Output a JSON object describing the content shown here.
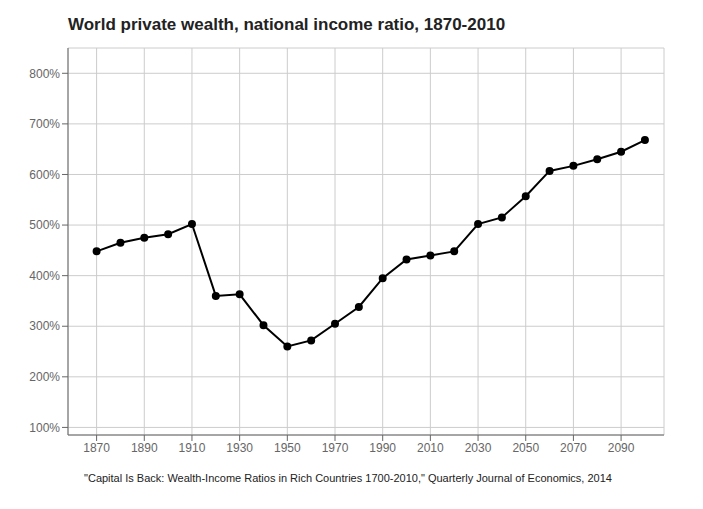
{
  "chart_data": {
    "type": "line",
    "title": "World private wealth, national income ratio, 1870-2010",
    "annotations": [
      "\"Capital Is Back: Wealth-Income Ratios in Rich Countries 1700-2010,\" Quarterly Journal of Economics, 2014"
    ],
    "x": [
      1870,
      1880,
      1890,
      1900,
      1910,
      1920,
      1930,
      1940,
      1950,
      1960,
      1970,
      1980,
      1990,
      2000,
      2010,
      2020,
      2030,
      2040,
      2050,
      2060,
      2070,
      2080,
      2090,
      2100
    ],
    "values": [
      4.48,
      4.65,
      4.75,
      4.82,
      5.02,
      3.6,
      3.63,
      3.02,
      2.6,
      2.72,
      3.05,
      3.38,
      3.95,
      4.32,
      4.4,
      4.48,
      5.02,
      5.15,
      5.57,
      6.07,
      6.17,
      6.3,
      6.45,
      6.68
    ],
    "xlim": [
      1858,
      2108
    ],
    "xticks": [
      1870,
      1890,
      1910,
      1930,
      1950,
      1970,
      1990,
      2010,
      2030,
      2050,
      2070,
      2090
    ],
    "ylim": [
      0.85,
      8.5
    ],
    "yticks": [
      {
        "value": 1.0,
        "label": "100%"
      },
      {
        "value": 2.0,
        "label": "200%"
      },
      {
        "value": 3.0,
        "label": "300%"
      },
      {
        "value": 4.0,
        "label": "400%"
      },
      {
        "value": 5.0,
        "label": "500%"
      },
      {
        "value": 6.0,
        "label": "600%"
      },
      {
        "value": 7.0,
        "label": "700%"
      },
      {
        "value": 8.0,
        "label": "800%"
      }
    ],
    "grid": true,
    "color": "#000000",
    "marker": "circle"
  }
}
